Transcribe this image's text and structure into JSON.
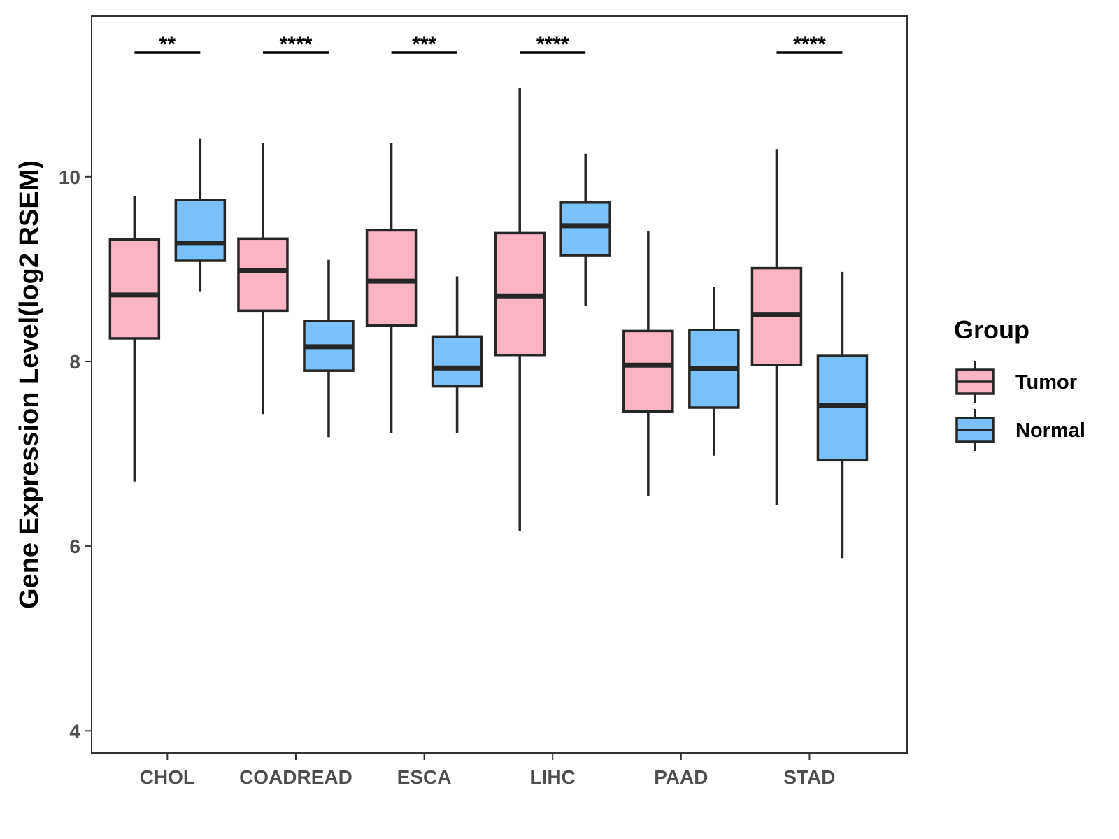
{
  "chart_data": {
    "type": "boxplot",
    "title": "",
    "xlabel": "",
    "ylabel": "Gene Expression Level(log2 RSEM)",
    "ylim": [
      3.76,
      11.74
    ],
    "yticks": [
      4,
      6,
      8,
      10
    ],
    "categories": [
      "CHOL",
      "COADREAD",
      "ESCA",
      "LIHC",
      "PAAD",
      "STAD"
    ],
    "legend": {
      "title": "Group",
      "position": "right",
      "entries": [
        {
          "name": "Tumor",
          "color": "#fbb4c4"
        },
        {
          "name": "Normal",
          "color": "#79c1f8"
        }
      ]
    },
    "series": [
      {
        "name": "Tumor",
        "color": "#fbb4c4",
        "boxes": [
          {
            "min": 6.7,
            "q1": 8.25,
            "median": 8.72,
            "q3": 9.32,
            "max": 9.79
          },
          {
            "min": 7.43,
            "q1": 8.55,
            "median": 8.98,
            "q3": 9.33,
            "max": 10.37
          },
          {
            "min": 7.22,
            "q1": 8.39,
            "median": 8.87,
            "q3": 9.42,
            "max": 10.37
          },
          {
            "min": 6.16,
            "q1": 8.07,
            "median": 8.71,
            "q3": 9.39,
            "max": 10.96
          },
          {
            "min": 6.54,
            "q1": 7.46,
            "median": 7.96,
            "q3": 8.33,
            "max": 9.41
          },
          {
            "min": 6.44,
            "q1": 7.96,
            "median": 8.51,
            "q3": 9.01,
            "max": 10.3
          }
        ]
      },
      {
        "name": "Normal",
        "color": "#79c1f8",
        "boxes": [
          {
            "min": 8.76,
            "q1": 9.09,
            "median": 9.28,
            "q3": 9.75,
            "max": 10.41
          },
          {
            "min": 7.18,
            "q1": 7.9,
            "median": 8.16,
            "q3": 8.44,
            "max": 9.1
          },
          {
            "min": 7.22,
            "q1": 7.73,
            "median": 7.93,
            "q3": 8.27,
            "max": 8.92
          },
          {
            "min": 8.6,
            "q1": 9.15,
            "median": 9.47,
            "q3": 9.72,
            "max": 10.25
          },
          {
            "min": 6.98,
            "q1": 7.5,
            "median": 7.92,
            "q3": 8.34,
            "max": 8.81
          },
          {
            "min": 5.87,
            "q1": 6.93,
            "median": 7.52,
            "q3": 8.06,
            "max": 8.97
          }
        ]
      }
    ],
    "significance": [
      {
        "category": "CHOL",
        "label": "**"
      },
      {
        "category": "COADREAD",
        "label": "****"
      },
      {
        "category": "ESCA",
        "label": "***"
      },
      {
        "category": "LIHC",
        "label": "****"
      },
      {
        "category": "PAAD",
        "label": ""
      },
      {
        "category": "STAD",
        "label": "****"
      }
    ],
    "grid": false
  }
}
